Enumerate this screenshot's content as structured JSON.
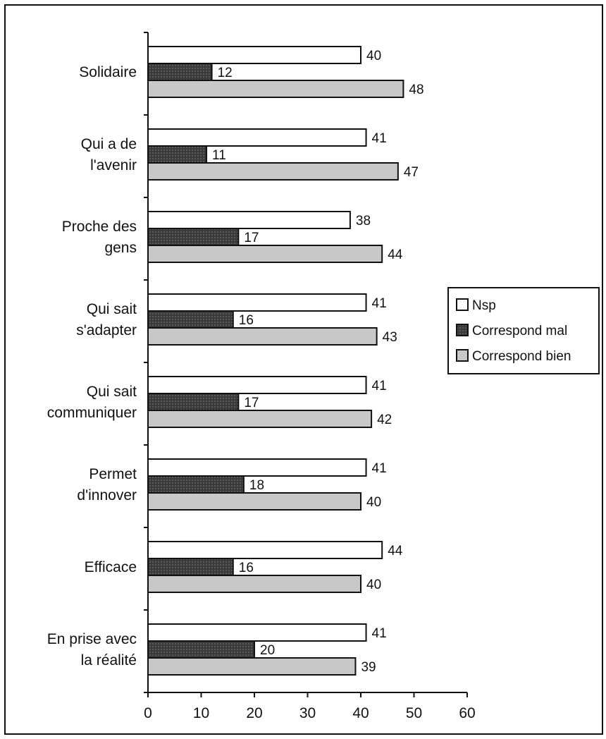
{
  "chart_data": {
    "type": "bar",
    "orientation": "horizontal",
    "title": "",
    "xlabel": "",
    "ylabel": "",
    "xlim": [
      0,
      60
    ],
    "x_ticks": [
      0,
      10,
      20,
      30,
      40,
      50,
      60
    ],
    "grid": false,
    "legend_position": "right",
    "categories": [
      {
        "lines": [
          "Solidaire"
        ]
      },
      {
        "lines": [
          "Qui a de",
          "l'avenir"
        ]
      },
      {
        "lines": [
          "Proche des",
          "gens"
        ]
      },
      {
        "lines": [
          "Qui sait",
          "s'adapter"
        ]
      },
      {
        "lines": [
          "Qui sait",
          "communiquer"
        ]
      },
      {
        "lines": [
          "Permet",
          "d'innover"
        ]
      },
      {
        "lines": [
          "Efficace"
        ]
      },
      {
        "lines": [
          "En prise avec",
          "la réalité"
        ]
      }
    ],
    "series": [
      {
        "name": "Nsp",
        "color": "#ffffff",
        "values": [
          40,
          41,
          38,
          41,
          41,
          41,
          44,
          41
        ]
      },
      {
        "name": "Correspond mal",
        "color": "#3a3a3a",
        "values": [
          12,
          11,
          17,
          16,
          17,
          18,
          16,
          20
        ]
      },
      {
        "name": "Correspond bien",
        "color": "#c8c8c8",
        "values": [
          48,
          47,
          44,
          43,
          42,
          40,
          40,
          39
        ]
      }
    ]
  }
}
